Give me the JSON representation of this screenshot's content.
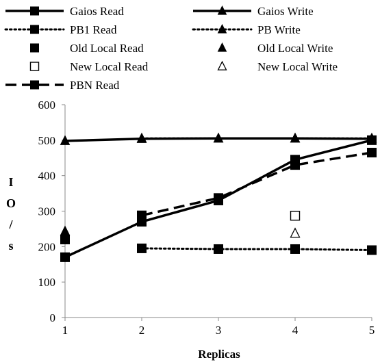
{
  "chart_data": {
    "type": "line",
    "xlabel": "Replicas",
    "ylabel": "IO/s",
    "x": [
      1,
      2,
      3,
      4,
      5
    ],
    "xlim": [
      1,
      5
    ],
    "ylim": [
      0,
      600
    ],
    "yticks": [
      0,
      100,
      200,
      300,
      400,
      500,
      600
    ],
    "grid": false,
    "legend_position": "top",
    "series": [
      {
        "name": "Gaios Read",
        "x": [
          1,
          2,
          3,
          4,
          5
        ],
        "values": [
          170,
          270,
          330,
          445,
          500
        ],
        "line": "solid",
        "marker": "square-filled",
        "color": "#000000"
      },
      {
        "name": "Gaios Write",
        "x": [
          1,
          2,
          3,
          4,
          5
        ],
        "values": [
          498,
          504,
          505,
          505,
          504
        ],
        "line": "solid",
        "marker": "triangle-filled",
        "color": "#000000"
      },
      {
        "name": "PB1 Read",
        "x": [
          2,
          3,
          4,
          5
        ],
        "values": [
          195,
          193,
          193,
          190
        ],
        "line": "dotted",
        "marker": "square-filled",
        "color": "#000000"
      },
      {
        "name": "PB Write",
        "x": [
          2,
          3,
          4,
          5
        ],
        "values": [
          505,
          505,
          505,
          505
        ],
        "line": "dotted",
        "marker": "triangle-filled",
        "color": "#000000"
      },
      {
        "name": "Old Local Read",
        "x": [
          1
        ],
        "values": [
          220
        ],
        "line": "none",
        "marker": "square-filled",
        "color": "#000000"
      },
      {
        "name": "Old Local Write",
        "x": [
          1
        ],
        "values": [
          243
        ],
        "line": "none",
        "marker": "triangle-filled",
        "color": "#000000"
      },
      {
        "name": "New Local Read",
        "x": [
          4
        ],
        "values": [
          287
        ],
        "line": "none",
        "marker": "square-open",
        "color": "#000000"
      },
      {
        "name": "New Local Write",
        "x": [
          4
        ],
        "values": [
          237
        ],
        "line": "none",
        "marker": "triangle-open",
        "color": "#000000"
      },
      {
        "name": "PBN Read",
        "x": [
          2,
          3,
          4,
          5
        ],
        "values": [
          288,
          337,
          430,
          465
        ],
        "line": "dashed",
        "marker": "square-filled",
        "color": "#000000"
      }
    ]
  }
}
